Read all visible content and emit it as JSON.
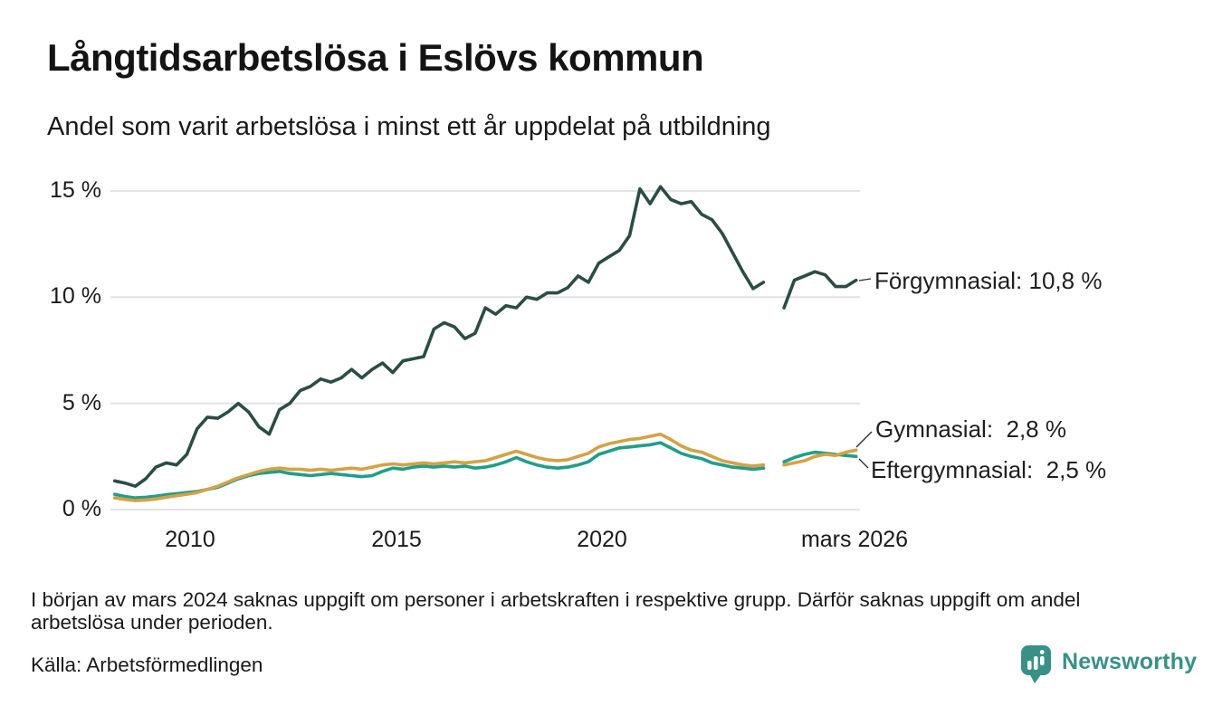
{
  "header": {
    "title": "Långtidsarbetslösa i Eslövs kommun",
    "subtitle": "Andel som varit arbetslösa i minst ett år uppdelat på utbildning"
  },
  "chart_data": {
    "type": "line",
    "title": "Långtidsarbetslösa i Eslövs kommun",
    "subtitle": "Andel som varit arbetslösa i minst ett år uppdelat på utbildning",
    "xlabel": "",
    "ylabel": "",
    "ylim": [
      0,
      15
    ],
    "xlim": [
      2008.1,
      2026.3
    ],
    "grid": "horizontal",
    "grid_color": "#e2e2e7",
    "gap_note": "data saknas i början av mars 2024",
    "yticks": [
      {
        "value": 15,
        "label": "15 %"
      },
      {
        "value": 10,
        "label": "10 %"
      },
      {
        "value": 5,
        "label": "5 %"
      },
      {
        "value": 0,
        "label": "0 %"
      }
    ],
    "xticks": [
      {
        "value": 2010,
        "label": "2010"
      },
      {
        "value": 2015,
        "label": "2015"
      },
      {
        "value": 2020,
        "label": "2020"
      },
      {
        "value": 2026.17,
        "label": "mars 2026"
      }
    ],
    "x": [
      2008.17,
      2008.42,
      2008.67,
      2008.92,
      2009.17,
      2009.42,
      2009.67,
      2009.92,
      2010.17,
      2010.42,
      2010.67,
      2010.92,
      2011.17,
      2011.42,
      2011.67,
      2011.92,
      2012.17,
      2012.42,
      2012.67,
      2012.92,
      2013.17,
      2013.42,
      2013.67,
      2013.92,
      2014.17,
      2014.42,
      2014.67,
      2014.92,
      2015.17,
      2015.42,
      2015.67,
      2015.92,
      2016.17,
      2016.42,
      2016.67,
      2016.92,
      2017.17,
      2017.42,
      2017.67,
      2017.92,
      2018.17,
      2018.42,
      2018.67,
      2018.92,
      2019.17,
      2019.42,
      2019.67,
      2019.92,
      2020.17,
      2020.42,
      2020.67,
      2020.92,
      2021.17,
      2021.42,
      2021.67,
      2021.92,
      2022.17,
      2022.42,
      2022.67,
      2022.92,
      2023.17,
      2023.42,
      2023.67,
      2023.92,
      2024.17,
      2024.42,
      2024.67,
      2024.92,
      2025.17,
      2025.42,
      2025.67,
      2025.92,
      2026.17
    ],
    "series": [
      {
        "name": "Förgymnasial",
        "end_value": "10,8 %",
        "end_label": "Förgymnasial: 10,8 %",
        "color": "#2c4c45",
        "values": [
          1.35,
          1.25,
          1.1,
          1.45,
          2.0,
          2.2,
          2.1,
          2.6,
          3.8,
          4.35,
          4.3,
          4.6,
          5.0,
          4.6,
          3.9,
          3.55,
          4.7,
          5.0,
          5.6,
          5.8,
          6.15,
          6.0,
          6.2,
          6.6,
          6.2,
          6.6,
          6.9,
          6.45,
          7.0,
          7.1,
          7.2,
          8.5,
          8.8,
          8.6,
          8.05,
          8.3,
          9.5,
          9.2,
          9.6,
          9.5,
          10.0,
          9.9,
          10.2,
          10.2,
          10.45,
          11.0,
          10.7,
          11.6,
          11.9,
          12.2,
          12.9,
          15.1,
          14.4,
          15.2,
          14.6,
          14.4,
          14.5,
          13.9,
          13.65,
          13.0,
          12.1,
          11.2,
          10.4,
          10.7,
          null,
          9.5,
          10.8,
          11.0,
          11.2,
          11.05,
          10.5,
          10.5,
          10.8
        ]
      },
      {
        "name": "Eftergymnasial",
        "end_value": "2,5 %",
        "end_label": "Eftergymnasial:  2,5 %",
        "color": "#219e8b",
        "values": [
          0.72,
          0.62,
          0.55,
          0.58,
          0.63,
          0.7,
          0.75,
          0.8,
          0.85,
          0.95,
          1.05,
          1.25,
          1.45,
          1.6,
          1.7,
          1.75,
          1.8,
          1.7,
          1.65,
          1.6,
          1.65,
          1.7,
          1.65,
          1.6,
          1.55,
          1.6,
          1.8,
          1.95,
          1.9,
          2.0,
          2.05,
          2.0,
          2.05,
          2.0,
          2.05,
          1.95,
          2.0,
          2.1,
          2.25,
          2.45,
          2.25,
          2.1,
          2.0,
          1.95,
          2.0,
          2.1,
          2.25,
          2.6,
          2.75,
          2.9,
          2.95,
          3.0,
          3.05,
          3.15,
          2.9,
          2.65,
          2.5,
          2.4,
          2.2,
          2.1,
          2.0,
          1.95,
          1.9,
          1.95,
          null,
          2.25,
          2.45,
          2.6,
          2.7,
          2.65,
          2.6,
          2.55,
          2.5
        ]
      },
      {
        "name": "Gymnasial",
        "end_value": "2,8 %",
        "end_label": "Gymnasial:  2,8 %",
        "color": "#d4a245",
        "values": [
          0.55,
          0.48,
          0.42,
          0.45,
          0.5,
          0.58,
          0.65,
          0.72,
          0.8,
          0.95,
          1.1,
          1.3,
          1.5,
          1.65,
          1.8,
          1.9,
          1.95,
          1.9,
          1.9,
          1.85,
          1.9,
          1.85,
          1.9,
          1.95,
          1.9,
          2.0,
          2.1,
          2.15,
          2.1,
          2.15,
          2.2,
          2.15,
          2.2,
          2.25,
          2.2,
          2.25,
          2.3,
          2.45,
          2.6,
          2.75,
          2.6,
          2.45,
          2.35,
          2.3,
          2.35,
          2.5,
          2.65,
          2.95,
          3.1,
          3.2,
          3.3,
          3.35,
          3.45,
          3.55,
          3.3,
          3.0,
          2.8,
          2.7,
          2.5,
          2.3,
          2.2,
          2.1,
          2.05,
          2.1,
          null,
          2.1,
          2.2,
          2.3,
          2.5,
          2.6,
          2.55,
          2.7,
          2.8
        ]
      }
    ]
  },
  "footer": {
    "note": "I början av mars 2024 saknas uppgift om personer i arbetskraften i respektive grupp. Därför saknas uppgift om andel arbetslösa under perioden.",
    "source": "Källa: Arbetsförmedlingen"
  },
  "branding": {
    "name": "Newsworthy",
    "color": "#399087"
  }
}
